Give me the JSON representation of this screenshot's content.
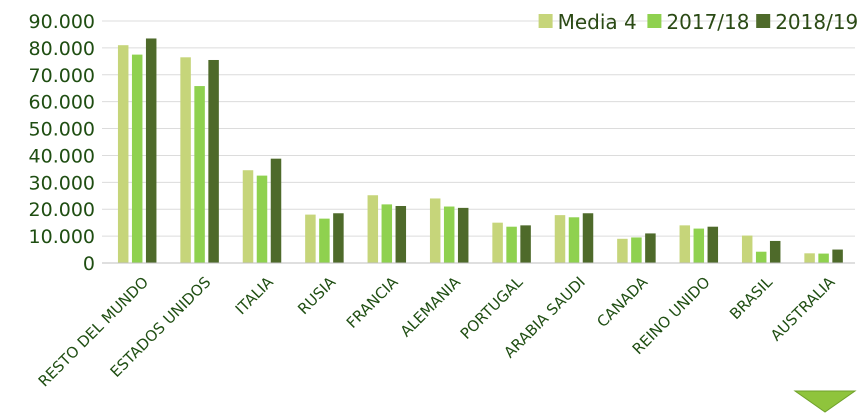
{
  "chart_data": {
    "type": "bar",
    "categories": [
      "RESTO DEL MUNDO",
      "ESTADOS UNIDOS",
      "ITALIA",
      "RUSIA",
      "FRANCIA",
      "ALEMANIA",
      "PORTUGAL",
      "ARABIA SAUDI",
      "CANADA",
      "REINO UNIDO",
      "BRASIL",
      "AUSTRALIA"
    ],
    "series": [
      {
        "name": "Media 4",
        "color": "#c6d57a",
        "values": [
          81000,
          76500,
          34500,
          18000,
          25200,
          24000,
          15000,
          17800,
          9000,
          14000,
          10200,
          3600
        ]
      },
      {
        "name": "2017/18",
        "color": "#8fd14f",
        "values": [
          77500,
          65800,
          32500,
          16500,
          21800,
          21000,
          13500,
          17000,
          9500,
          12800,
          4200,
          3500
        ]
      },
      {
        "name": "2018/19",
        "color": "#4e6a2a",
        "values": [
          83500,
          75500,
          38800,
          18500,
          21200,
          20500,
          14000,
          18500,
          11000,
          13500,
          8200,
          5000
        ]
      }
    ],
    "ylim": [
      0,
      90000
    ],
    "yticks": [
      "0",
      "10.000",
      "20.000",
      "30.000",
      "40.000",
      "50.000",
      "60.000",
      "70.000",
      "80.000",
      "90.000"
    ],
    "ytick_values": [
      0,
      10000,
      20000,
      30000,
      40000,
      50000,
      60000,
      70000,
      80000,
      90000
    ],
    "grid": true,
    "legend": "top-right"
  },
  "decor": {
    "arrow_icon": "down-arrow-icon",
    "arrow_color": "#8fc43c"
  }
}
